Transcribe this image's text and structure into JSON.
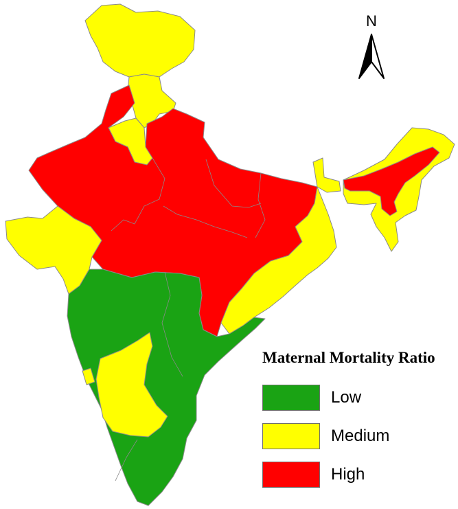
{
  "legend": {
    "title": "Maternal Mortality Ratio",
    "items": [
      {
        "label": "Low",
        "color": "#1aa314"
      },
      {
        "label": "Medium",
        "color": "#ffff00"
      },
      {
        "label": "High",
        "color": "#ff0000"
      }
    ]
  },
  "north_arrow": {
    "letter": "N"
  }
}
